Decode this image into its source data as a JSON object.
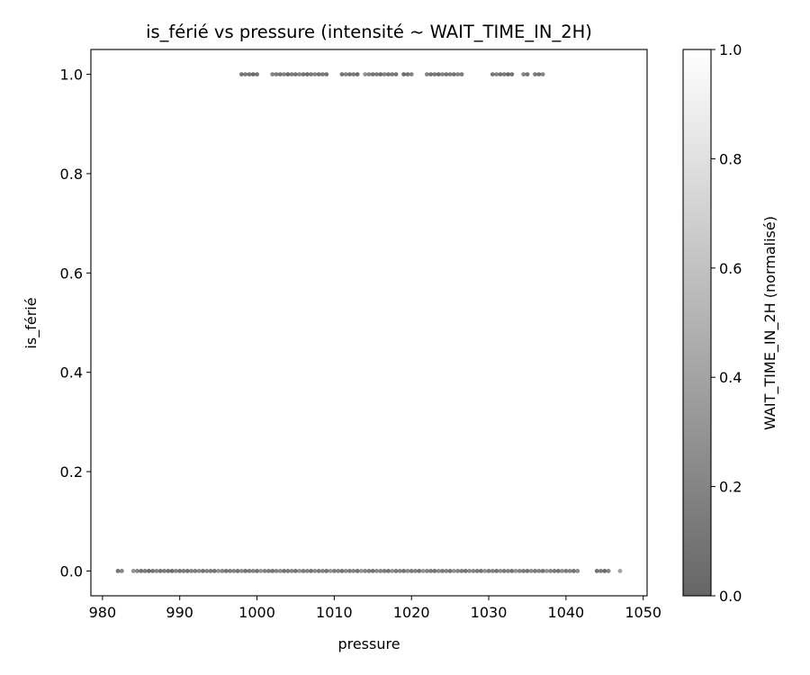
{
  "chart_data": {
    "type": "scatter",
    "title": "is_férié vs pressure (intensité ~ WAIT_TIME_IN_2H)",
    "xlabel": "pressure",
    "ylabel": "is_férié",
    "xlim": [
      978.5,
      1050.5
    ],
    "ylim": [
      -0.05,
      1.05
    ],
    "xticks": [
      "980",
      "990",
      "1000",
      "1010",
      "1020",
      "1030",
      "1040",
      "1050"
    ],
    "yticks": [
      "0.0",
      "0.2",
      "0.4",
      "0.6",
      "0.8",
      "1.0"
    ],
    "grid": false,
    "point_color_map": "grayscale, alpha 0.6",
    "colorbar": {
      "label": "WAIT_TIME_IN_2H (normalisé)",
      "range": [
        0.0,
        1.0
      ],
      "ticks": [
        "0.0",
        "0.2",
        "0.4",
        "0.6",
        "0.8",
        "1.0"
      ],
      "color_low": "#666666",
      "color_high": "#ffffff"
    },
    "series": [
      {
        "y": 1.0,
        "x": [
          998.0,
          998.5,
          999.0,
          999.5,
          1000.0,
          1002.0,
          1002.5,
          1003.0,
          1003.5,
          1004.0,
          1004.5,
          1005.0,
          1005.5,
          1006.0,
          1006.5,
          1007.0,
          1007.5,
          1008.0,
          1008.5,
          1009.0,
          1011.0,
          1011.5,
          1012.0,
          1012.5,
          1013.0,
          1014.0,
          1014.5,
          1015.0,
          1015.5,
          1016.0,
          1016.5,
          1017.0,
          1017.5,
          1018.0,
          1019.0,
          1019.5,
          1020.0,
          1022.0,
          1022.5,
          1023.0,
          1023.5,
          1024.0,
          1024.5,
          1025.0,
          1025.5,
          1026.0,
          1026.5,
          1030.5,
          1031.0,
          1031.5,
          1032.0,
          1032.5,
          1033.0,
          1034.5,
          1035.0,
          1036.0,
          1036.5,
          1037.0
        ],
        "intensity": [
          0.1,
          0.15,
          0.1,
          0.05,
          0.1,
          0.2,
          0.15,
          0.1,
          0.2,
          0.05,
          0.15,
          0.1,
          0.2,
          0.1,
          0.05,
          0.15,
          0.2,
          0.1,
          0.15,
          0.1,
          0.1,
          0.2,
          0.1,
          0.15,
          0.05,
          0.3,
          0.2,
          0.1,
          0.15,
          0.05,
          0.2,
          0.1,
          0.15,
          0.1,
          0.05,
          0.1,
          0.2,
          0.2,
          0.1,
          0.15,
          0.05,
          0.2,
          0.1,
          0.15,
          0.1,
          0.2,
          0.15,
          0.1,
          0.2,
          0.1,
          0.15,
          0.05,
          0.1,
          0.2,
          0.1,
          0.15,
          0.1,
          0.2
        ]
      },
      {
        "y": 0.0,
        "x": [
          982.0,
          982.5,
          984.0,
          984.5,
          985.0,
          985.5,
          986.0,
          986.5,
          987.0,
          987.5,
          988.0,
          988.5,
          989.0,
          989.5,
          990.0,
          990.5,
          991.0,
          991.5,
          992.0,
          992.5,
          993.0,
          993.5,
          994.0,
          994.5,
          995.0,
          995.5,
          996.0,
          996.5,
          997.0,
          997.5,
          998.0,
          998.5,
          999.0,
          999.5,
          1000.0,
          1000.5,
          1001.0,
          1001.5,
          1002.0,
          1002.5,
          1003.0,
          1003.5,
          1004.0,
          1004.5,
          1005.0,
          1005.5,
          1006.0,
          1006.5,
          1007.0,
          1007.5,
          1008.0,
          1008.5,
          1009.0,
          1009.5,
          1010.0,
          1010.5,
          1011.0,
          1011.5,
          1012.0,
          1012.5,
          1013.0,
          1013.5,
          1014.0,
          1014.5,
          1015.0,
          1015.5,
          1016.0,
          1016.5,
          1017.0,
          1017.5,
          1018.0,
          1018.5,
          1019.0,
          1019.5,
          1020.0,
          1020.5,
          1021.0,
          1021.5,
          1022.0,
          1022.5,
          1023.0,
          1023.5,
          1024.0,
          1024.5,
          1025.0,
          1025.5,
          1026.0,
          1026.5,
          1027.0,
          1027.5,
          1028.0,
          1028.5,
          1029.0,
          1029.5,
          1030.0,
          1030.5,
          1031.0,
          1031.5,
          1032.0,
          1032.5,
          1033.0,
          1033.5,
          1034.0,
          1034.5,
          1035.0,
          1035.5,
          1036.0,
          1036.5,
          1037.0,
          1037.5,
          1038.0,
          1038.5,
          1039.0,
          1039.5,
          1040.0,
          1040.5,
          1041.0,
          1041.5,
          1044.0,
          1044.5,
          1045.0,
          1045.5,
          1047.0
        ],
        "intensity": [
          0.1,
          0.2,
          0.3,
          0.2,
          0.1,
          0.15,
          0.05,
          0.1,
          0.2,
          0.1,
          0.15,
          0.1,
          0.05,
          0.2,
          0.1,
          0.15,
          0.1,
          0.2,
          0.15,
          0.25,
          0.1,
          0.2,
          0.15,
          0.1,
          0.3,
          0.2,
          0.1,
          0.15,
          0.2,
          0.1,
          0.25,
          0.1,
          0.15,
          0.2,
          0.1,
          0.3,
          0.2,
          0.15,
          0.1,
          0.2,
          0.25,
          0.1,
          0.15,
          0.2,
          0.1,
          0.3,
          0.15,
          0.2,
          0.1,
          0.25,
          0.15,
          0.2,
          0.1,
          0.3,
          0.15,
          0.2,
          0.1,
          0.25,
          0.15,
          0.2,
          0.1,
          0.3,
          0.2,
          0.15,
          0.1,
          0.25,
          0.2,
          0.15,
          0.1,
          0.3,
          0.15,
          0.2,
          0.1,
          0.25,
          0.15,
          0.2,
          0.1,
          0.3,
          0.2,
          0.15,
          0.1,
          0.25,
          0.15,
          0.2,
          0.1,
          0.3,
          0.2,
          0.15,
          0.1,
          0.25,
          0.2,
          0.15,
          0.1,
          0.3,
          0.15,
          0.2,
          0.1,
          0.25,
          0.15,
          0.2,
          0.1,
          0.3,
          0.2,
          0.15,
          0.1,
          0.25,
          0.15,
          0.2,
          0.1,
          0.3,
          0.2,
          0.15,
          0.1,
          0.25,
          0.15,
          0.2,
          0.1,
          0.25,
          0.1,
          0.15,
          0.05,
          0.2,
          0.4
        ]
      }
    ]
  }
}
